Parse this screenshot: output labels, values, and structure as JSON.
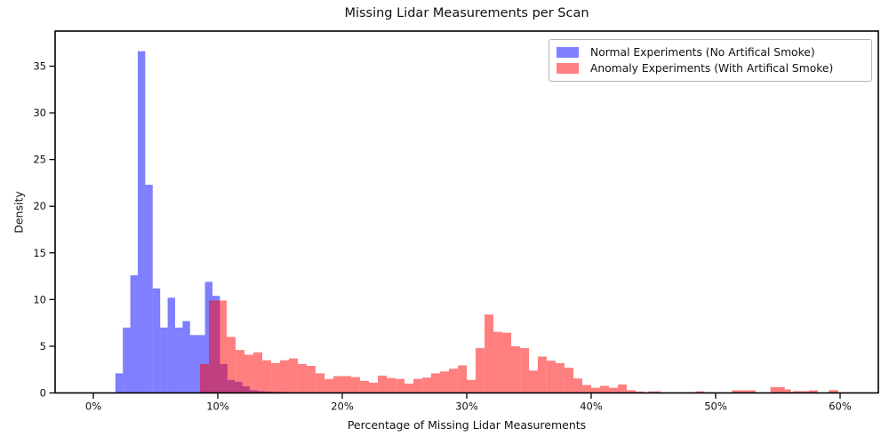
{
  "title": "Missing Lidar Measurements per Scan",
  "chart_data": {
    "type": "histogram",
    "title": "Missing Lidar Measurements per Scan",
    "xlabel": "Percentage of Missing Lidar Measurements",
    "ylabel": "Density",
    "x_axis": {
      "unit": "percent",
      "range_pct": [
        -3.07,
        63.07
      ],
      "ticks": [
        {
          "value": 0,
          "label": "0%"
        },
        {
          "value": 10,
          "label": "10%"
        },
        {
          "value": 20,
          "label": "20%"
        },
        {
          "value": 30,
          "label": "30%"
        },
        {
          "value": 40,
          "label": "40%"
        },
        {
          "value": 50,
          "label": "50%"
        },
        {
          "value": 60,
          "label": "60%"
        }
      ]
    },
    "y_axis": {
      "range": [
        0,
        38.7
      ],
      "ticks": [
        0,
        5,
        10,
        15,
        20,
        25,
        30,
        35
      ]
    },
    "grid": false,
    "legend_position": "upper right",
    "series": [
      {
        "name": "normal",
        "label": "Normal Experiments (No Artifical Smoke)",
        "color": "#0000ff",
        "fill_opacity": 0.5,
        "legend_swatch_color": "#8080ff",
        "default_bin_width_pct": 0.6,
        "bars_start_pct_density": [
          [
            1.77,
            2.1
          ],
          [
            2.37,
            7.0
          ],
          [
            2.97,
            12.6
          ],
          [
            3.57,
            36.6
          ],
          [
            4.17,
            22.3
          ],
          [
            4.77,
            11.2
          ],
          [
            5.37,
            7.0
          ],
          [
            5.97,
            10.2
          ],
          [
            6.57,
            7.0
          ],
          [
            7.17,
            7.7
          ],
          [
            7.77,
            6.2
          ],
          [
            8.37,
            6.2
          ],
          [
            8.97,
            11.9
          ],
          [
            9.57,
            10.4
          ],
          [
            10.17,
            3.1
          ],
          [
            10.77,
            1.4
          ],
          [
            11.37,
            1.2
          ],
          [
            11.97,
            0.7
          ],
          [
            12.57,
            0.3
          ],
          [
            13.17,
            0.2
          ],
          [
            13.77,
            0.15
          ],
          [
            14.37,
            0.12
          ],
          [
            14.97,
            0.1
          ]
        ]
      },
      {
        "name": "anomaly",
        "label": "Anomaly Experiments (With Artifical Smoke)",
        "color": "#ff0000",
        "fill_opacity": 0.5,
        "legend_swatch_color": "#ff8080",
        "default_bin_width_pct": 0.714,
        "bars_start_pct_density": [
          [
            8.57,
            3.1
          ],
          [
            9.29,
            9.9
          ],
          [
            10.0,
            9.9
          ],
          [
            10.71,
            6.0
          ],
          [
            11.43,
            4.6
          ],
          [
            12.14,
            4.1
          ],
          [
            12.86,
            4.35
          ],
          [
            13.57,
            3.5
          ],
          [
            14.29,
            3.2
          ],
          [
            15.0,
            3.5
          ],
          [
            15.71,
            3.7
          ],
          [
            16.43,
            3.1
          ],
          [
            17.14,
            2.9
          ],
          [
            17.86,
            2.1
          ],
          [
            18.57,
            1.5
          ],
          [
            19.29,
            1.8
          ],
          [
            20.0,
            1.8
          ],
          [
            20.71,
            1.7
          ],
          [
            21.43,
            1.3
          ],
          [
            22.14,
            1.1
          ],
          [
            22.86,
            1.85
          ],
          [
            23.57,
            1.6
          ],
          [
            24.29,
            1.5
          ],
          [
            25.0,
            1.0
          ],
          [
            25.71,
            1.5
          ],
          [
            26.43,
            1.65
          ],
          [
            27.14,
            2.1
          ],
          [
            27.86,
            2.3
          ],
          [
            28.57,
            2.6
          ],
          [
            29.29,
            2.95
          ],
          [
            30.0,
            1.4
          ],
          [
            30.71,
            4.8
          ],
          [
            31.43,
            8.4
          ],
          [
            32.14,
            6.55
          ],
          [
            32.86,
            6.45
          ],
          [
            33.57,
            5.0
          ],
          [
            34.29,
            4.8
          ],
          [
            35.0,
            2.4
          ],
          [
            35.71,
            3.9
          ],
          [
            36.43,
            3.45
          ],
          [
            37.14,
            3.2
          ],
          [
            37.86,
            2.7
          ],
          [
            38.57,
            1.55
          ],
          [
            39.29,
            0.85
          ],
          [
            40.0,
            0.55
          ],
          [
            40.71,
            0.76
          ],
          [
            41.43,
            0.55
          ],
          [
            42.14,
            0.9
          ],
          [
            42.86,
            0.3
          ],
          [
            43.57,
            0.15
          ],
          [
            44.6,
            0.17,
            1.0
          ],
          [
            48.4,
            0.17,
            0.7
          ],
          [
            51.3,
            0.28,
            1.9
          ],
          [
            54.4,
            0.63,
            1.15
          ],
          [
            55.55,
            0.38,
            0.5
          ],
          [
            56.2,
            0.2,
            1.3
          ],
          [
            57.5,
            0.28,
            0.7
          ],
          [
            59.1,
            0.3,
            0.75
          ]
        ]
      }
    ],
    "overlap_blend_color": "#bf4080"
  },
  "legend": {
    "items": [
      {
        "label": "Normal Experiments (No Artifical Smoke)"
      },
      {
        "label": "Anomaly Experiments (With Artifical Smoke)"
      }
    ]
  }
}
